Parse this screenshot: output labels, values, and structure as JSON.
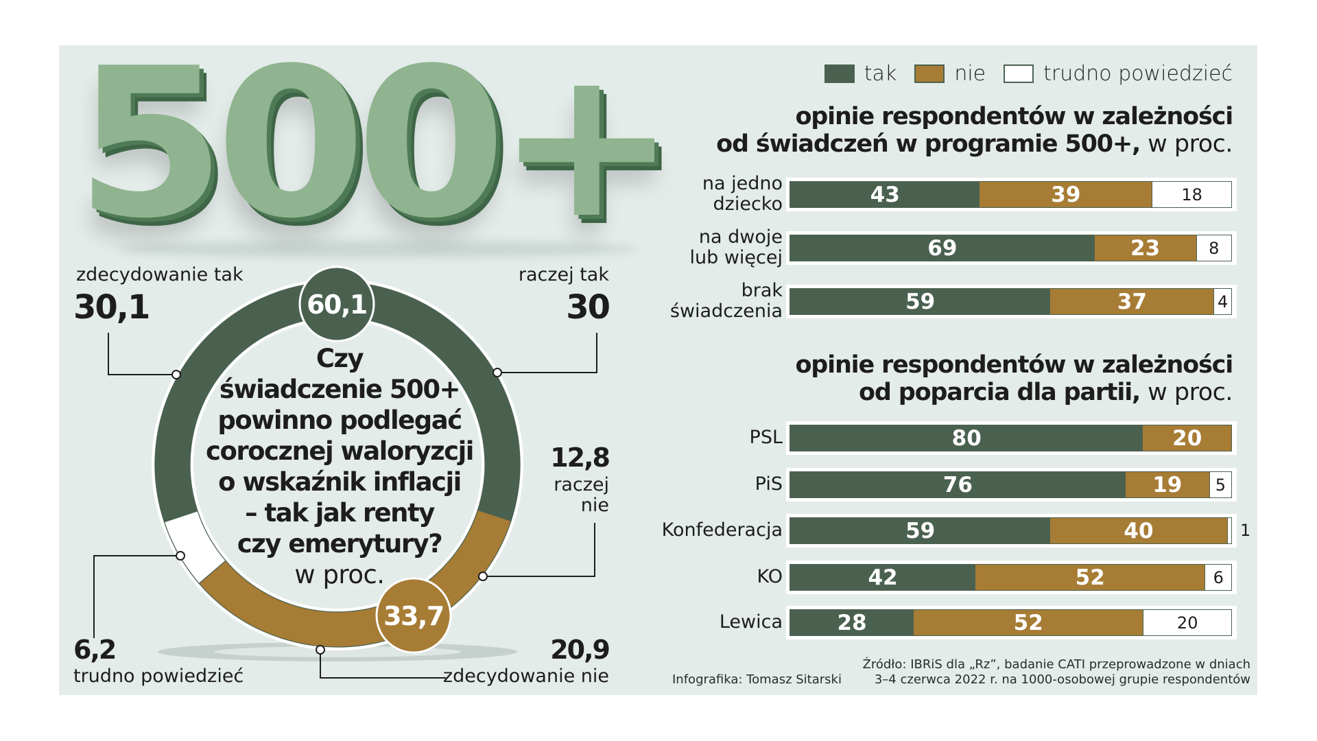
{
  "hero": {
    "text": "500+"
  },
  "legend": [
    {
      "key": "tak",
      "label": "tak",
      "color": "#4b6150"
    },
    {
      "key": "nie",
      "label": "nie",
      "color": "#a77c35"
    },
    {
      "key": "tp",
      "label": "trudno powiedzieć",
      "color": "#ffffff"
    }
  ],
  "donut": {
    "question_lines": [
      "Czy",
      "świadczenie 500+",
      "powinno podlegać",
      "corocznej waloryzcji",
      "o wskaźnik inflacji",
      "– tak jak renty",
      "czy emerytury?"
    ],
    "question_unit": "w proc.",
    "total_tak": "60,1",
    "total_nie": "33,7",
    "labels": {
      "zdecydowanie_tak": {
        "label": "zdecydowanie tak",
        "value": "30,1"
      },
      "raczej_tak": {
        "label": "raczej tak",
        "value": "30"
      },
      "raczej_nie": {
        "label_line1": "raczej",
        "label_line2": "nie",
        "value": "12,8"
      },
      "zdecydowanie_nie": {
        "label": "zdecydowanie nie",
        "value": "20,9"
      },
      "trudno": {
        "label": "trudno powiedzieć",
        "value": "6,2"
      }
    }
  },
  "chart1": {
    "title_line1": "opinie respondentów w zależności",
    "title_line2": "od świadczeń w programie 500+,",
    "title_unit": "w proc."
  },
  "chart2": {
    "title_line1": "opinie respondentów w zależności",
    "title_line2": "od poparcia dla partii,",
    "title_unit": "w proc."
  },
  "footer": {
    "author": "Infografika: Tomasz Sitarski",
    "source_line1": "Źródło: IBRiS dla „Rz”, badanie CATI przeprowadzone w dniach",
    "source_line2": "3–4 czerwca 2022 r. na 1000-osobowej grupie respondentów"
  },
  "chart_data": [
    {
      "type": "pie",
      "title": "Czy świadczenie 500+ powinno podlegać corocznej waloryzcji o wskaźnik inflacji – tak jak renty czy emerytury? w proc.",
      "categories": [
        "zdecydowanie tak",
        "raczej tak",
        "raczej nie",
        "zdecydowanie nie",
        "trudno powiedzieć"
      ],
      "values": [
        30.1,
        30,
        12.8,
        20.9,
        6.2
      ],
      "groups": [
        {
          "name": "tak",
          "value": 60.1
        },
        {
          "name": "nie",
          "value": 33.7
        }
      ],
      "colors": [
        "#4b6150",
        "#4b6150",
        "#a77c35",
        "#a77c35",
        "#ffffff"
      ],
      "style": "donut"
    },
    {
      "type": "bar",
      "orientation": "horizontal",
      "stacked": true,
      "title": "opinie respondentów w zależności od świadczeń w programie 500+, w proc.",
      "categories": [
        [
          "na jedno",
          "dziecko"
        ],
        [
          "na dwoje",
          "lub więcej"
        ],
        [
          "brak",
          "świadczenia"
        ]
      ],
      "series": [
        {
          "name": "tak",
          "values": [
            43,
            69,
            59
          ]
        },
        {
          "name": "nie",
          "values": [
            39,
            23,
            37
          ]
        },
        {
          "name": "trudno powiedzieć",
          "values": [
            18,
            8,
            4
          ]
        }
      ],
      "xlim": [
        0,
        100
      ],
      "legend": "top-right"
    },
    {
      "type": "bar",
      "orientation": "horizontal",
      "stacked": true,
      "title": "opinie respondentów w zależności od poparcia dla partii, w proc.",
      "categories": [
        [
          "PSL"
        ],
        [
          "PiS"
        ],
        [
          "Konfederacja"
        ],
        [
          "KO"
        ],
        [
          "Lewica"
        ]
      ],
      "series": [
        {
          "name": "tak",
          "values": [
            80,
            76,
            59,
            42,
            28
          ]
        },
        {
          "name": "nie",
          "values": [
            20,
            19,
            40,
            52,
            52
          ]
        },
        {
          "name": "trudno powiedzieć",
          "values": [
            0,
            5,
            1,
            6,
            20
          ]
        }
      ],
      "xlim": [
        0,
        100
      ],
      "legend": "top-right"
    }
  ]
}
